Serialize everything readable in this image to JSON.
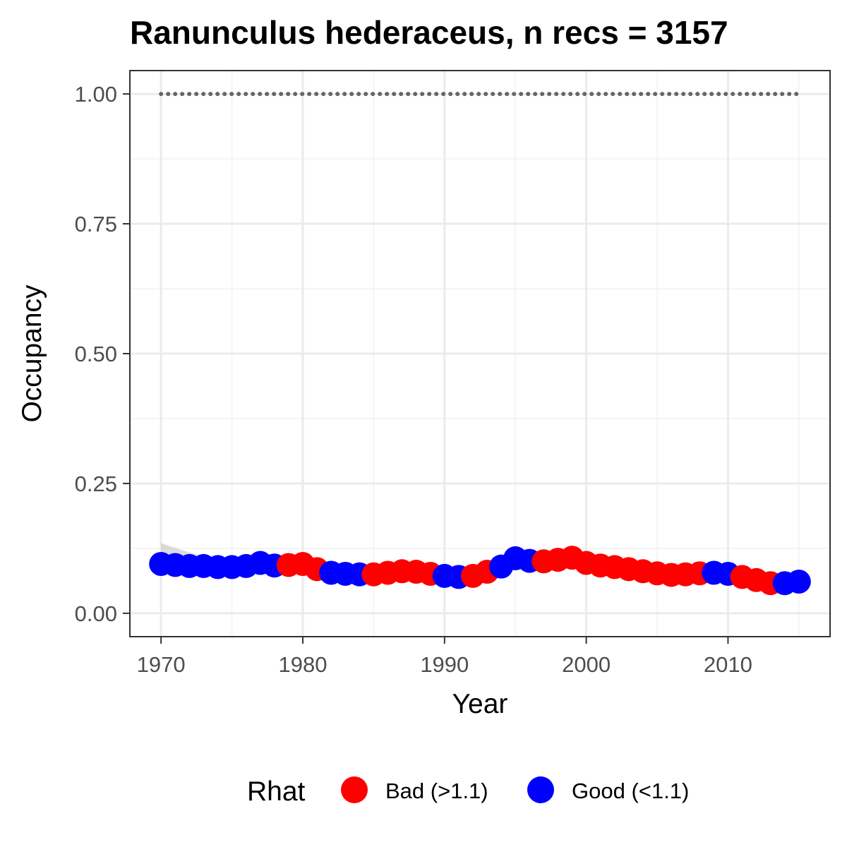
{
  "chart_data": {
    "type": "scatter",
    "title": "Ranunculus hederaceus, n recs = 3157",
    "xlabel": "Year",
    "ylabel": "Occupancy",
    "xlim": [
      1967.8,
      2017.2
    ],
    "ylim": [
      -0.045,
      1.045
    ],
    "x_ticks": [
      1970,
      1980,
      1990,
      2000,
      2010
    ],
    "x_tick_labels": [
      "1970",
      "1980",
      "1990",
      "2000",
      "2010"
    ],
    "y_ticks": [
      0,
      0.25,
      0.5,
      0.75,
      1.0
    ],
    "y_tick_labels": [
      "0.00",
      "0.25",
      "0.50",
      "0.75",
      "1.00"
    ],
    "grid": true,
    "legend": {
      "title": "Rhat",
      "position": "bottom",
      "entries": [
        {
          "label": "Bad (>1.1)",
          "color": "#ff0000"
        },
        {
          "label": "Good (<1.1)",
          "color": "#0000ff"
        }
      ]
    },
    "series": [
      {
        "name": "Occupancy",
        "x": [
          1970,
          1971,
          1972,
          1973,
          1974,
          1975,
          1976,
          1977,
          1978,
          1979,
          1980,
          1981,
          1982,
          1983,
          1984,
          1985,
          1986,
          1987,
          1988,
          1989,
          1990,
          1991,
          1992,
          1993,
          1994,
          1995,
          1996,
          1997,
          1998,
          1999,
          2000,
          2001,
          2002,
          2003,
          2004,
          2005,
          2006,
          2007,
          2008,
          2009,
          2010,
          2011,
          2012,
          2013,
          2014,
          2015
        ],
        "y": [
          0.095,
          0.093,
          0.091,
          0.091,
          0.089,
          0.089,
          0.091,
          0.097,
          0.092,
          0.093,
          0.095,
          0.085,
          0.078,
          0.076,
          0.075,
          0.075,
          0.078,
          0.081,
          0.08,
          0.076,
          0.072,
          0.07,
          0.072,
          0.08,
          0.09,
          0.106,
          0.101,
          0.1,
          0.103,
          0.107,
          0.097,
          0.092,
          0.089,
          0.085,
          0.081,
          0.077,
          0.074,
          0.075,
          0.077,
          0.078,
          0.076,
          0.07,
          0.064,
          0.058,
          0.058,
          0.061
        ],
        "rhat": [
          "Good",
          "Good",
          "Good",
          "Good",
          "Good",
          "Good",
          "Good",
          "Good",
          "Good",
          "Bad",
          "Bad",
          "Bad",
          "Good",
          "Good",
          "Good",
          "Bad",
          "Bad",
          "Bad",
          "Bad",
          "Bad",
          "Good",
          "Good",
          "Bad",
          "Bad",
          "Good",
          "Good",
          "Good",
          "Bad",
          "Bad",
          "Bad",
          "Bad",
          "Bad",
          "Bad",
          "Bad",
          "Bad",
          "Bad",
          "Bad",
          "Bad",
          "Bad",
          "Good",
          "Good",
          "Bad",
          "Bad",
          "Bad",
          "Good",
          "Good"
        ]
      },
      {
        "name": "Upper",
        "x": [
          1970,
          1971,
          1972,
          1973,
          1974,
          1975,
          1976,
          1977,
          1978,
          1979,
          1980,
          1981,
          1982,
          1983,
          1984,
          1985,
          1986,
          1987,
          1988,
          1989,
          1990,
          1991,
          1992,
          1993,
          1994,
          1995,
          1996,
          1997,
          1998,
          1999,
          2000,
          2001,
          2002,
          2003,
          2004,
          2005,
          2006,
          2007,
          2008,
          2009,
          2010,
          2011,
          2012,
          2013,
          2014,
          2015
        ],
        "y": [
          1,
          1,
          1,
          1,
          1,
          1,
          1,
          1,
          1,
          1,
          1,
          1,
          1,
          1,
          1,
          1,
          1,
          1,
          1,
          1,
          1,
          1,
          1,
          1,
          1,
          1,
          1,
          1,
          1,
          1,
          1,
          1,
          1,
          1,
          1,
          1,
          1,
          1,
          1,
          1,
          1,
          1,
          1,
          1,
          1,
          1
        ],
        "style": "dotted"
      }
    ],
    "colors": {
      "bad": "#ff0000",
      "good": "#0000ff",
      "upper_line": "#666666",
      "ribbon": "#cccccc",
      "grid_major": "#ebebeb",
      "grid_minor": "#f2f2f2",
      "panel_border": "#333333"
    }
  }
}
